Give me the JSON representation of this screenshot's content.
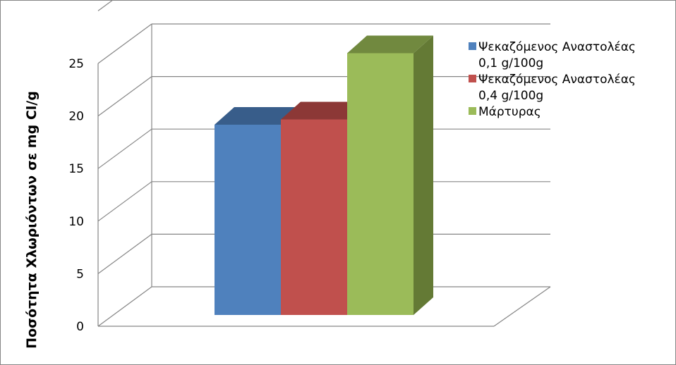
{
  "chart_data": {
    "type": "bar",
    "title": "",
    "xlabel": "",
    "ylabel": "Ποσότητα Χλωριόντων σε mg Cl/g",
    "ylim": [
      0,
      25
    ],
    "yticks": [
      "0",
      "5",
      "10",
      "15",
      "20",
      "25"
    ],
    "ytick_values": [
      0,
      5,
      10,
      15,
      20,
      25
    ],
    "grid": true,
    "three_d": true,
    "legend_position": "top-right",
    "series": [
      {
        "name_lines": [
          "Ψεκαζόμενος Αναστολέας",
          "0,1 g/100g"
        ],
        "value": 18.1,
        "color": "#4F81BD",
        "top_color": "#385D8A",
        "side_color": "#3A5F8C"
      },
      {
        "name_lines": [
          "Ψεκαζόμενος Αναστολέας",
          "0,4 g/100g"
        ],
        "value": 18.6,
        "color": "#C0504D",
        "top_color": "#8C3836",
        "side_color": "#8C3836"
      },
      {
        "name_lines": [
          "Μάρτυρας"
        ],
        "value": 24.9,
        "color": "#9BBB59",
        "top_color": "#71893F",
        "side_color": "#647A35"
      }
    ]
  }
}
